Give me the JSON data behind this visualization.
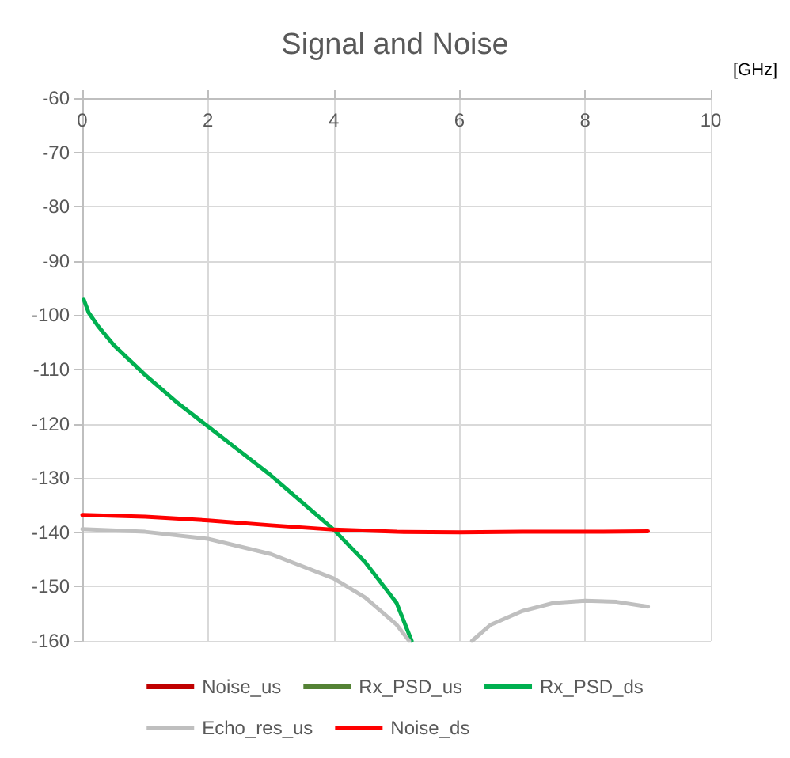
{
  "chart_data": {
    "type": "line",
    "title": "Signal and Noise",
    "xlabel": "[GHz]",
    "xlim": [
      0,
      10
    ],
    "xticks": [
      0,
      2,
      4,
      6,
      8,
      10
    ],
    "ylim": [
      -160,
      -60
    ],
    "yticks": [
      -160,
      -150,
      -140,
      -130,
      -120,
      -110,
      -100,
      -90,
      -80,
      -70,
      -60
    ],
    "grid": true,
    "legend": "bottom",
    "marker": "none",
    "line_style": "solid",
    "series": [
      {
        "name": "Noise_us",
        "color": "#c00000"
      },
      {
        "name": "Rx_PSD_us",
        "color": "#548235"
      },
      {
        "name": "Rx_PSD_ds",
        "color": "#00b050",
        "x": [
          0.02,
          0.1,
          0.25,
          0.5,
          1,
          1.5,
          2,
          2.5,
          3,
          3.5,
          4,
          4.5,
          5,
          5.24
        ],
        "values": [
          -97,
          -99.5,
          -102,
          -105.5,
          -111,
          -116,
          -120.5,
          -125,
          -129.5,
          -134.5,
          -139.5,
          -145.5,
          -153,
          -160
        ]
      },
      {
        "name": "Echo_res_us",
        "color": "#bfbfbf",
        "x": [
          0,
          1,
          2,
          3,
          4,
          4.5,
          5,
          5.2,
          5.7,
          6.2,
          6.5,
          7,
          7.5,
          8,
          8.5,
          9
        ],
        "values": [
          -139.4,
          -139.9,
          -141.2,
          -144,
          -148.5,
          -152,
          -157,
          -160,
          null,
          -160,
          -157,
          -154.5,
          -153,
          -152.6,
          -152.8,
          -153.7
        ]
      },
      {
        "name": "Noise_ds",
        "color": "#ff0000",
        "x": [
          0,
          1,
          2,
          3,
          4,
          5,
          6,
          7,
          8,
          9
        ],
        "values": [
          -136.8,
          -137.1,
          -137.8,
          -138.7,
          -139.5,
          -139.9,
          -140,
          -139.9,
          -139.9,
          -139.8
        ]
      }
    ]
  }
}
